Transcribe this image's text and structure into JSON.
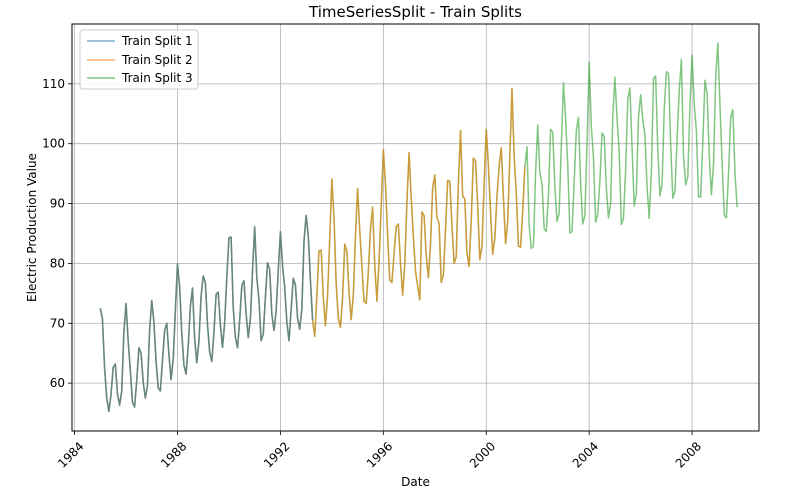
{
  "chart_data": {
    "type": "line",
    "title": "TimeSeriesSplit - Train Splits",
    "xlabel": "Date",
    "ylabel": "Electric Production Value",
    "xlim": [
      1983.9,
      2010.6
    ],
    "ylim": [
      52,
      120
    ],
    "xticks": [
      1984,
      1988,
      1992,
      1996,
      2000,
      2004,
      2008
    ],
    "xtick_labels": [
      "1984",
      "1988",
      "1992",
      "1996",
      "2000",
      "2004",
      "2008"
    ],
    "yticks": [
      60,
      70,
      80,
      90,
      100,
      110
    ],
    "ytick_labels": [
      "60",
      "70",
      "80",
      "90",
      "100",
      "110"
    ],
    "grid": true,
    "legend_position": "top-left",
    "series": [
      {
        "name": "Train Split 1",
        "color": "#1f77b4",
        "alpha": 0.6,
        "start": 1985.0,
        "end": 1993.25
      },
      {
        "name": "Train Split 2",
        "color": "#ff7f0e",
        "alpha": 0.6,
        "start": 1985.0,
        "end": 2001.5
      },
      {
        "name": "Train Split 3",
        "color": "#2ca02c",
        "alpha": 0.6,
        "start": 1985.0,
        "end": 2009.75
      }
    ],
    "monthly": {
      "start_year": 1985,
      "values": [
        72.5,
        70.7,
        62.5,
        57.5,
        55.3,
        58.1,
        62.6,
        63.2,
        58.2,
        56.3,
        58.7,
        68.5,
        73.3,
        67.0,
        62.2,
        56.8,
        56.0,
        60.5,
        65.9,
        65.0,
        60.2,
        57.5,
        59.6,
        68.9,
        73.8,
        70.2,
        63.7,
        59.2,
        58.7,
        63.8,
        68.8,
        70.0,
        64.8,
        60.6,
        64.0,
        72.1,
        79.9,
        76.1,
        68.4,
        63.0,
        61.5,
        66.2,
        72.8,
        75.9,
        67.5,
        63.4,
        67.0,
        74.5,
        77.9,
        76.8,
        69.7,
        65.2,
        63.6,
        68.5,
        74.8,
        75.2,
        69.7,
        66.0,
        70.1,
        77.7,
        84.3,
        84.4,
        72.6,
        67.6,
        65.9,
        70.5,
        76.3,
        77.1,
        71.6,
        67.6,
        70.8,
        78.9,
        86.1,
        77.6,
        73.9,
        67.1,
        68.2,
        74.4,
        80.1,
        79.0,
        71.5,
        68.8,
        72.0,
        78.8,
        85.3,
        79.6,
        76.0,
        70.2,
        67.1,
        72.3,
        77.5,
        76.4,
        70.9,
        69.0,
        72.4,
        83.7,
        88.0,
        84.6,
        77.2,
        70.5,
        67.8,
        74.6,
        82.1,
        82.2,
        74.3,
        69.6,
        74.7,
        84.1,
        94.1,
        87.6,
        76.7,
        70.8,
        69.3,
        74.3,
        83.2,
        82.0,
        75.2,
        70.6,
        74.7,
        84.5,
        92.5,
        85.5,
        79.6,
        73.7,
        73.3,
        78.6,
        85.7,
        89.4,
        79.7,
        73.7,
        80.5,
        89.4,
        99.0,
        93.2,
        84.8,
        77.2,
        76.8,
        81.6,
        86.1,
        86.6,
        80.1,
        74.7,
        79.9,
        90.2,
        98.5,
        91.0,
        84.5,
        78.7,
        76.2,
        73.9,
        88.6,
        88.0,
        81.4,
        77.6,
        83.2,
        92.6,
        94.8,
        87.7,
        86.6,
        76.8,
        78.0,
        85.6,
        93.9,
        93.7,
        86.3,
        80.0,
        81.1,
        93.4,
        102.2,
        91.2,
        90.8,
        81.8,
        79.5,
        87.3,
        97.6,
        97.1,
        89.8,
        80.6,
        82.8,
        93.1,
        102.4,
        96.3,
        88.5,
        81.5,
        84.2,
        91.2,
        96.2,
        99.3,
        91.1,
        83.3,
        87.0,
        97.8,
        109.2,
        97.9,
        91.8,
        82.9,
        82.7,
        88.8,
        96.1,
        99.5,
        86.4,
        82.5,
        82.8,
        95.0,
        103.1,
        95.2,
        93.3,
        85.8,
        85.3,
        91.3,
        102.4,
        101.9,
        93.0,
        87.0,
        88.4,
        99.7,
        110.2,
        104.2,
        96.5,
        85.1,
        85.3,
        93.7,
        102.2,
        104.4,
        93.5,
        86.6,
        88.0,
        100.1,
        113.6,
        103.0,
        97.6,
        86.9,
        88.2,
        93.8,
        101.8,
        101.2,
        92.7,
        87.6,
        90.0,
        104.5,
        111.1,
        104.2,
        98.6,
        86.5,
        87.6,
        95.6,
        107.5,
        109.3,
        99.4,
        89.6,
        91.7,
        104.4,
        108.2,
        104.0,
        101.5,
        92.8,
        87.5,
        95.0,
        110.9,
        111.3,
        99.0,
        91.3,
        93.2,
        105.8,
        112.0,
        111.8,
        99.9,
        90.9,
        92.0,
        100.7,
        108.9,
        114.1,
        98.1,
        93.1,
        94.5,
        106.5,
        114.8,
        106.6,
        102.1,
        91.1,
        91.1,
        100.5,
        110.6,
        108.3,
        98.0,
        91.5,
        96.6,
        111.1,
        116.8,
        106.4,
        96.7,
        88.1,
        87.6,
        95.2,
        104.4,
        105.7,
        95.0,
        89.4
      ]
    }
  }
}
